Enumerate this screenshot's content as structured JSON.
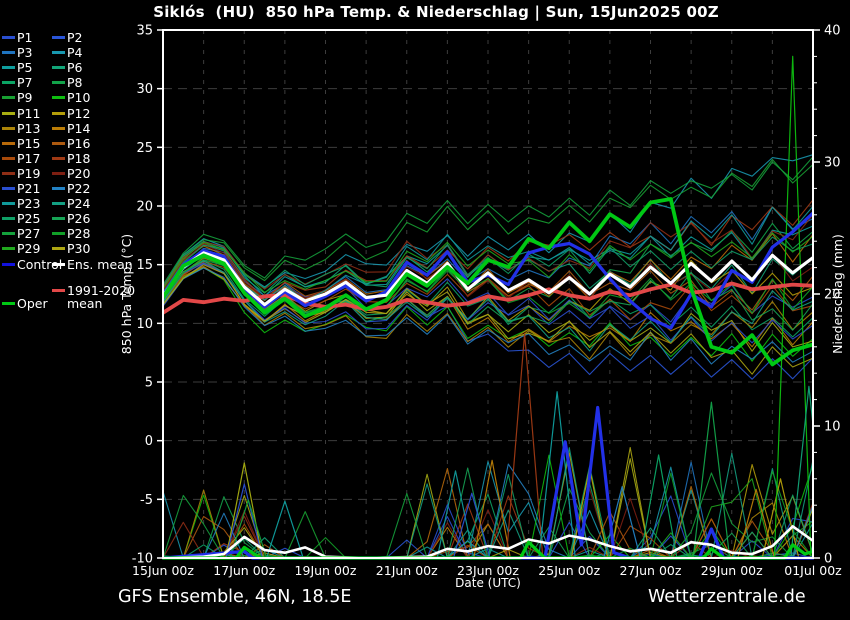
{
  "title": "Siklós  (HU)  850 hPa Temp. & Niederschlag | Sun, 15Jun2025 00Z",
  "footer": {
    "left": "GFS Ensemble, 46N, 18.5E",
    "right": "Wetterzentrale.de"
  },
  "colors": {
    "background": "#000000",
    "text": "#ffffff",
    "grid": "#3d3d3d",
    "axis": "#ffffff"
  },
  "legend": {
    "members": [
      {
        "label": "P1",
        "color": "#2a4fd0"
      },
      {
        "label": "P2",
        "color": "#2a55d8"
      },
      {
        "label": "P3",
        "color": "#1f74c0"
      },
      {
        "label": "P4",
        "color": "#1898b0"
      },
      {
        "label": "P5",
        "color": "#0f9e9e"
      },
      {
        "label": "P6",
        "color": "#12a578"
      },
      {
        "label": "P7",
        "color": "#0ba565"
      },
      {
        "label": "P8",
        "color": "#12a34a"
      },
      {
        "label": "P9",
        "color": "#18a032"
      },
      {
        "label": "P10",
        "color": "#0ebe10"
      },
      {
        "label": "P11",
        "color": "#a8ae12"
      },
      {
        "label": "P12",
        "color": "#b49e0a"
      },
      {
        "label": "P13",
        "color": "#ab8408"
      },
      {
        "label": "P14",
        "color": "#bb7d06"
      },
      {
        "label": "P15",
        "color": "#b86a0a"
      },
      {
        "label": "P16",
        "color": "#ad5a10"
      },
      {
        "label": "P17",
        "color": "#a84a0a"
      },
      {
        "label": "P18",
        "color": "#a03a14"
      },
      {
        "label": "P19",
        "color": "#8f2e16"
      },
      {
        "label": "P20",
        "color": "#7e1f12"
      },
      {
        "label": "P21",
        "color": "#2a4fd0"
      },
      {
        "label": "P22",
        "color": "#2382c4"
      },
      {
        "label": "P23",
        "color": "#109a9a"
      },
      {
        "label": "P24",
        "color": "#13a083"
      },
      {
        "label": "P25",
        "color": "#0fa066"
      },
      {
        "label": "P26",
        "color": "#16a455"
      },
      {
        "label": "P27",
        "color": "#14a23c"
      },
      {
        "label": "P28",
        "color": "#11a028"
      },
      {
        "label": "P29",
        "color": "#20a81e"
      },
      {
        "label": "P30",
        "color": "#ada612"
      }
    ],
    "control": {
      "label": "Control",
      "color": "#1212dd"
    },
    "ens_mean": {
      "label": "Ens. mean",
      "color": "#ffffff"
    },
    "climate": {
      "label_line1": "1991-2020",
      "label_line2": "mean",
      "color": "#e24848"
    },
    "oper": {
      "label": "Oper",
      "color": "#00c814"
    }
  },
  "chart_data": {
    "type": "line",
    "title": "Siklós (HU) 850 hPa Temp. & Niederschlag | Sun, 15Jun2025 00Z",
    "xlabel": "Date (UTC)",
    "x_start": 0,
    "x_end": 16,
    "x_step": 0.5,
    "x_unit": "days since 15Jun2025 00Z",
    "x_ticks": [
      {
        "day": 0,
        "label": "15Jun 00z"
      },
      {
        "day": 2,
        "label": "17Jun 00z"
      },
      {
        "day": 4,
        "label": "19Jun 00z"
      },
      {
        "day": 6,
        "label": "21Jun 00z"
      },
      {
        "day": 8,
        "label": "23Jun 00z"
      },
      {
        "day": 10,
        "label": "25Jun 00z"
      },
      {
        "day": 12,
        "label": "27Jun 00z"
      },
      {
        "day": 14,
        "label": "29Jun 00z"
      },
      {
        "day": 16,
        "label": "01Jul 00z"
      }
    ],
    "left_axis": {
      "label": "850 hPa Temp. (°C)",
      "min": -10,
      "max": 35,
      "tick_step": 5,
      "grid": true
    },
    "right_axis": {
      "label": "Niederschlag (mm)",
      "min": 0,
      "max": 40,
      "tick_step": 10,
      "minor_step": 2
    },
    "temperature_series": [
      {
        "name": "Ens. mean",
        "color": "#ffffff",
        "width": 3.2,
        "values": [
          12.3,
          14.8,
          16.0,
          15.4,
          13.1,
          11.6,
          12.9,
          11.9,
          12.5,
          13.5,
          12.2,
          12.4,
          14.5,
          13.4,
          15.1,
          12.9,
          14.3,
          12.8,
          13.7,
          12.6,
          13.9,
          12.5,
          14.2,
          13.1,
          14.8,
          13.4,
          15.1,
          13.6,
          15.3,
          13.7,
          15.8,
          14.3,
          15.6
        ]
      },
      {
        "name": "Control",
        "color": "#2230e8",
        "width": 3.2,
        "values": [
          12.4,
          15.0,
          16.2,
          15.7,
          13.0,
          11.4,
          12.7,
          11.5,
          12.3,
          13.2,
          11.9,
          12.7,
          15.2,
          14.1,
          16.1,
          13.5,
          14.1,
          13.3,
          16.0,
          16.5,
          16.8,
          15.9,
          13.8,
          11.9,
          10.4,
          9.6,
          12.5,
          11.4,
          14.5,
          13.5,
          16.5,
          17.8,
          19.4
        ]
      },
      {
        "name": "Oper",
        "color": "#00c814",
        "width": 3.8,
        "values": [
          12.2,
          14.9,
          15.8,
          15.1,
          12.6,
          10.9,
          12.1,
          10.6,
          11.3,
          12.4,
          11.2,
          12.0,
          14.2,
          13.2,
          14.8,
          13.4,
          15.4,
          14.8,
          17.2,
          16.4,
          18.6,
          17.0,
          19.3,
          18.2,
          20.3,
          20.6,
          13.0,
          8.0,
          7.5,
          9.0,
          6.5,
          7.7,
          8.2
        ]
      },
      {
        "name": "1991-2020 mean",
        "color": "#e24848",
        "width": 3.8,
        "values": [
          10.9,
          12.0,
          11.8,
          12.1,
          11.9,
          12.3,
          12.4,
          11.7,
          11.4,
          11.6,
          11.2,
          11.4,
          12.0,
          11.8,
          11.5,
          11.7,
          12.3,
          12.0,
          12.4,
          12.9,
          12.4,
          12.1,
          12.7,
          12.4,
          12.9,
          13.3,
          12.6,
          12.8,
          13.4,
          12.9,
          13.1,
          13.3,
          13.2
        ]
      }
    ],
    "precip_series": [
      {
        "name": "Ens. mean",
        "color": "#ffffff",
        "width": 2.6,
        "points": [
          [
            0,
            0
          ],
          [
            1,
            0.1
          ],
          [
            1.5,
            0.3
          ],
          [
            2,
            1.6
          ],
          [
            2.5,
            0.6
          ],
          [
            3,
            0.4
          ],
          [
            3.5,
            0.8
          ],
          [
            4,
            0.1
          ],
          [
            5,
            0
          ],
          [
            6.5,
            0.1
          ],
          [
            7,
            0.7
          ],
          [
            7.5,
            0.5
          ],
          [
            8,
            0.9
          ],
          [
            8.5,
            0.7
          ],
          [
            9,
            1.4
          ],
          [
            9.5,
            1.1
          ],
          [
            10,
            1.7
          ],
          [
            10.5,
            1.4
          ],
          [
            11,
            0.9
          ],
          [
            11.5,
            0.5
          ],
          [
            12,
            0.7
          ],
          [
            12.5,
            0.4
          ],
          [
            13,
            1.2
          ],
          [
            13.5,
            1.0
          ],
          [
            14,
            0.4
          ],
          [
            14.5,
            0.3
          ],
          [
            15,
            0.9
          ],
          [
            15.5,
            2.4
          ],
          [
            16,
            1.3
          ]
        ]
      },
      {
        "name": "Control",
        "color": "#2230e8",
        "width": 3.2,
        "points": [
          [
            0,
            0
          ],
          [
            2,
            0.5
          ],
          [
            2.2,
            0
          ],
          [
            9.4,
            0
          ],
          [
            9.9,
            8.8
          ],
          [
            10.3,
            1.0
          ],
          [
            10.7,
            11.4
          ],
          [
            11.1,
            0.4
          ],
          [
            11.5,
            0
          ],
          [
            13.2,
            0
          ],
          [
            13.5,
            2.2
          ],
          [
            13.8,
            0
          ],
          [
            16,
            0
          ]
        ]
      },
      {
        "name": "Oper",
        "color": "#00c814",
        "width": 3.2,
        "points": [
          [
            0,
            0
          ],
          [
            1.8,
            0
          ],
          [
            2,
            0.8
          ],
          [
            2.4,
            0
          ],
          [
            8.8,
            0
          ],
          [
            9,
            1.2
          ],
          [
            9.4,
            0
          ],
          [
            13.3,
            0
          ],
          [
            13.5,
            0.7
          ],
          [
            13.8,
            0
          ],
          [
            15.3,
            0
          ],
          [
            15.5,
            1.0
          ],
          [
            15.8,
            0.3
          ],
          [
            16,
            0.5
          ]
        ]
      }
    ],
    "precip_spikes": [
      {
        "day": 2.0,
        "mm": 7.2,
        "color": "#a8ae12"
      },
      {
        "day": 2.0,
        "mm": 5.6,
        "color": "#2a4fd0"
      },
      {
        "day": 2.1,
        "mm": 4.4,
        "color": "#14a23c"
      },
      {
        "day": 3.0,
        "mm": 4.3,
        "color": "#0f9e9e"
      },
      {
        "day": 7.2,
        "mm": 6.6,
        "color": "#109a9a"
      },
      {
        "day": 7.6,
        "mm": 4.9,
        "color": "#2a4fd0"
      },
      {
        "day": 8.1,
        "mm": 7.4,
        "color": "#bb7d06"
      },
      {
        "day": 8.9,
        "mm": 17.0,
        "color": "#a03a14"
      },
      {
        "day": 9.7,
        "mm": 12.6,
        "color": "#0f9e9e"
      },
      {
        "day": 10.5,
        "mm": 6.8,
        "color": "#b49e0a"
      },
      {
        "day": 11.3,
        "mm": 5.4,
        "color": "#2382c4"
      },
      {
        "day": 12.2,
        "mm": 7.8,
        "color": "#0ba565"
      },
      {
        "day": 13.5,
        "mm": 11.8,
        "color": "#12a34a"
      },
      {
        "day": 14.6,
        "mm": 5.2,
        "color": "#bb7d06"
      },
      {
        "day": 15.2,
        "mm": 6.0,
        "color": "#b49e0a"
      },
      {
        "day": 15.5,
        "mm": 38.0,
        "color": "#0ebe10"
      },
      {
        "day": 15.9,
        "mm": 13.0,
        "color": "#12a578"
      }
    ],
    "ensemble": {
      "count": 30,
      "seed": 20250615,
      "temp_spread": {
        "base": 0.35,
        "growth": 2.05,
        "exp": 0.85
      },
      "note": "30 GEFS perturbation members P1-P30 drawn as thin lines around Ens. mean"
    }
  }
}
